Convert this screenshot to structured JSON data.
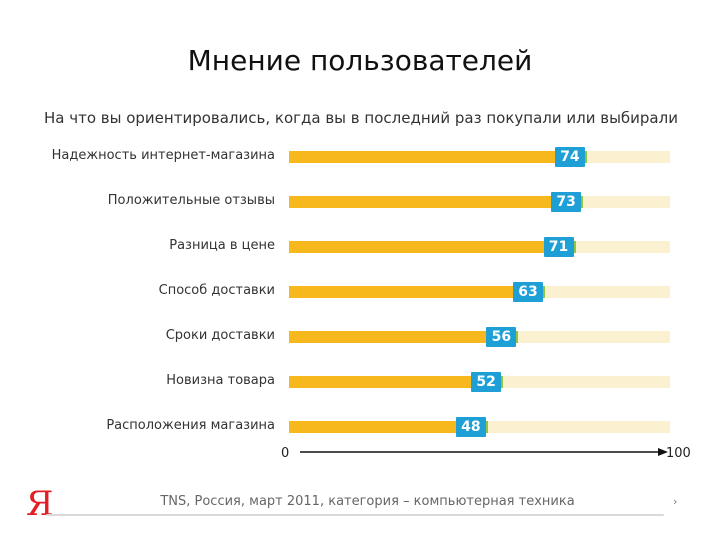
{
  "chart_data": {
    "type": "bar",
    "orientation": "horizontal",
    "title": "Мнение пользователей",
    "subtitle": "На что вы ориентировались, когда вы в последний раз покупали или выбирали",
    "categories": [
      "Надежность интернет-магазина",
      "Положительные отзывы",
      "Разница в цене",
      "Способ доставки",
      "Сроки доставки",
      "Новизна товара",
      "Расположения магазина"
    ],
    "values": [
      74,
      73,
      71,
      63,
      56,
      52,
      48
    ],
    "xlim": [
      0,
      100
    ],
    "xaxis": {
      "min_label": "0",
      "max_label": "100"
    },
    "colors": {
      "bar": "#f6b81c",
      "track": "#fbf0cf",
      "badge": "#1e9fd6",
      "edge": "#8dc63f"
    }
  },
  "footer": {
    "logo": "Я",
    "source": "TNS, Россия, март 2011, категория – компьютерная техника"
  }
}
